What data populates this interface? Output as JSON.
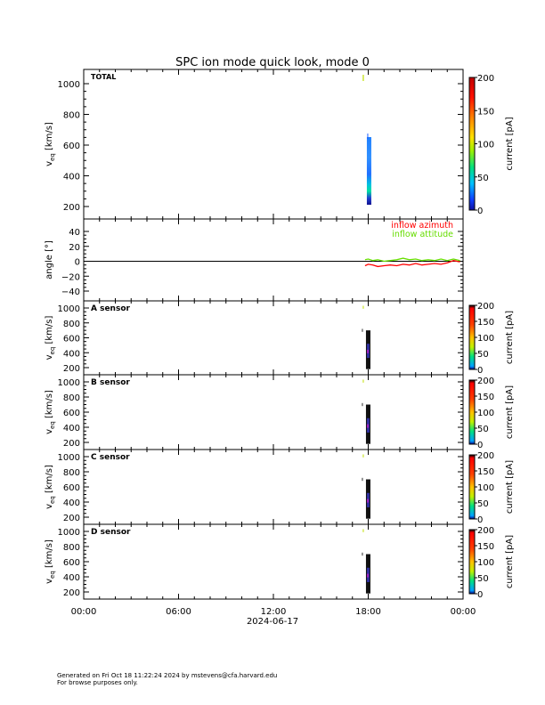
{
  "title": "SPC ion mode quick look, mode 0",
  "footer": {
    "line1": "Generated on Fri Oct 18 11:22:24 2024 by mstevens@cfa.harvard.edu",
    "line2": "For browse purposes only."
  },
  "chart_data": [
    {
      "type": "heatmap",
      "panel": "total",
      "label": "TOTAL",
      "ylabel": "v",
      "ylabel_sub": "eq",
      "ylabel_unit": "[km/s]",
      "ylim": [
        150,
        1060
      ],
      "yticks": [
        "1000",
        "800",
        "600",
        "400",
        "200"
      ],
      "colorbar": {
        "label": "current [pA]",
        "range": [
          0,
          200
        ],
        "ticks": [
          "200",
          "150",
          "100",
          "50",
          "0"
        ]
      },
      "data_window_hours": [
        17.8,
        17.95
      ]
    },
    {
      "type": "line",
      "panel": "angle",
      "ylabel": "angle [°]",
      "ylim": [
        -45,
        45
      ],
      "yticks": [
        "40",
        "20",
        "0",
        "−20",
        "−40"
      ],
      "series": [
        {
          "name": "inflow azimuth",
          "color": "#ff0000",
          "x": [
            17.8,
            18.0,
            18.3,
            18.6,
            19.0,
            19.4,
            19.8,
            20.2,
            20.6,
            21.0,
            21.4,
            21.8,
            22.2,
            22.6,
            23.0,
            23.4,
            23.8
          ],
          "y": [
            -6,
            -4,
            -5,
            -7,
            -6,
            -5,
            -6,
            -4,
            -5,
            -3,
            -5,
            -4,
            -3,
            -4,
            -2,
            1,
            -1
          ]
        },
        {
          "name": "inflow attitude",
          "color": "#66dd00",
          "x": [
            17.8,
            18.0,
            18.3,
            18.6,
            19.0,
            19.4,
            19.8,
            20.2,
            20.6,
            21.0,
            21.4,
            21.8,
            22.2,
            22.6,
            23.0,
            23.4,
            23.8
          ],
          "y": [
            2,
            3,
            1,
            2,
            0,
            1,
            2,
            4,
            2,
            3,
            1,
            2,
            1,
            3,
            1,
            3,
            1
          ]
        }
      ]
    },
    {
      "type": "heatmap",
      "panel": "A",
      "label": "A sensor",
      "ylabel": "v",
      "ylabel_sub": "eq",
      "ylabel_unit": "[km/s]",
      "yticks": [
        "1000",
        "800",
        "600",
        "400",
        "200"
      ],
      "colorbar": {
        "label": "current [pA]",
        "range": [
          0,
          200
        ],
        "ticks": [
          "200",
          "150",
          "100",
          "50",
          "0"
        ]
      }
    },
    {
      "type": "heatmap",
      "panel": "B",
      "label": "B sensor",
      "ylabel": "v",
      "ylabel_sub": "eq",
      "ylabel_unit": "[km/s]",
      "yticks": [
        "1000",
        "800",
        "600",
        "400",
        "200"
      ],
      "colorbar": {
        "label": "current [pA]",
        "range": [
          0,
          200
        ],
        "ticks": [
          "200",
          "150",
          "100",
          "50",
          "0"
        ]
      }
    },
    {
      "type": "heatmap",
      "panel": "C",
      "label": "C sensor",
      "ylabel": "v",
      "ylabel_sub": "eq",
      "ylabel_unit": "[km/s]",
      "yticks": [
        "1000",
        "800",
        "600",
        "400",
        "200"
      ],
      "colorbar": {
        "label": "current [pA]",
        "range": [
          0,
          200
        ],
        "ticks": [
          "200",
          "150",
          "100",
          "50",
          "0"
        ]
      }
    },
    {
      "type": "heatmap",
      "panel": "D",
      "label": "D sensor",
      "ylabel": "v",
      "ylabel_sub": "eq",
      "ylabel_unit": "[km/s]",
      "yticks": [
        "1000",
        "800",
        "600",
        "400",
        "200"
      ],
      "colorbar": {
        "label": "current [pA]",
        "range": [
          0,
          200
        ],
        "ticks": [
          "200",
          "150",
          "100",
          "50",
          "0"
        ]
      }
    }
  ],
  "x_axis": {
    "range_hours": [
      0,
      24
    ],
    "ticks": [
      {
        "hour": 0,
        "label": "00:00"
      },
      {
        "hour": 6,
        "label": "06:00"
      },
      {
        "hour": 12,
        "label": "12:00"
      },
      {
        "hour": 18,
        "label": "18:00"
      },
      {
        "hour": 24,
        "label": "00:00"
      }
    ],
    "date": "2024-06-17"
  },
  "colors": {
    "axis": "#000000",
    "azimuth": "#ff0000",
    "attitude": "#66dd00"
  }
}
